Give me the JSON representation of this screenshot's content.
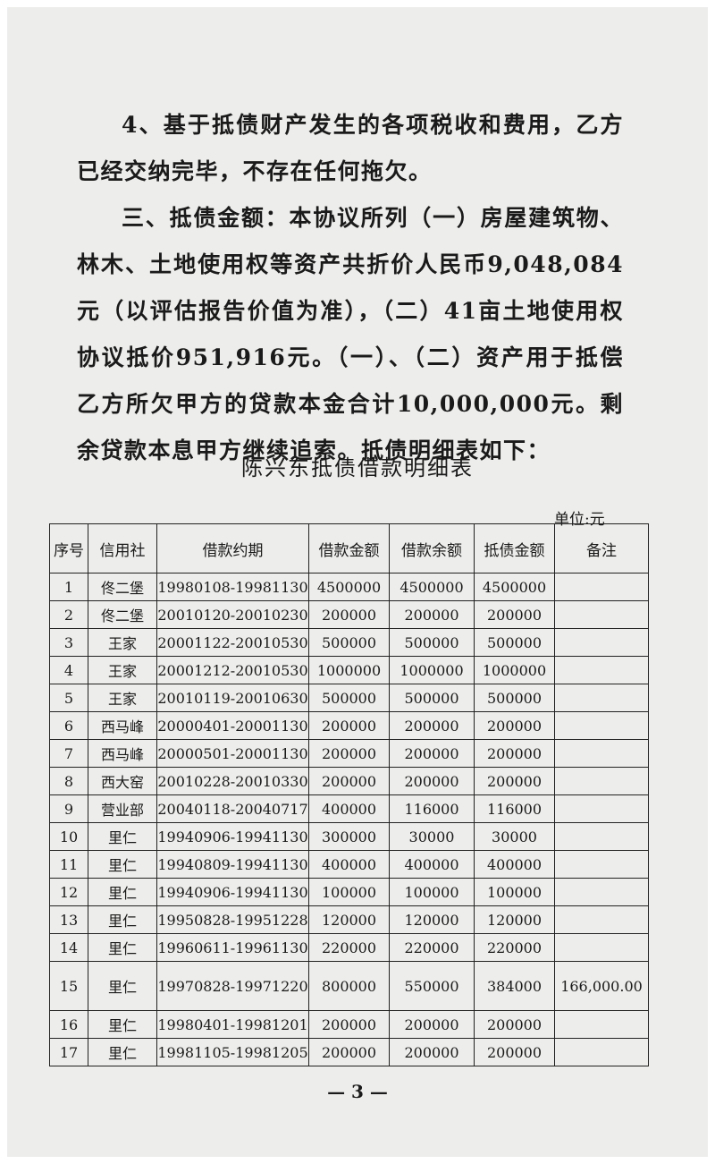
{
  "body": {
    "paragraphs": [
      "4、基于抵债财产发生的各项税收和费用，乙方已经交纳完毕，不存在任何拖欠。",
      "三、抵债金额：本协议所列（一）房屋建筑物、林木、土地使用权等资产共折价人民币9,048,084元（以评估报告价值为准），（二）41亩土地使用权协议抵价951,916元。（一）、（二）资产用于抵偿乙方所欠甲方的贷款本金合计10,000,000元。剩余贷款本息甲方继续追索。抵债明细表如下："
    ]
  },
  "table": {
    "title": "陈兴东抵债借款明细表",
    "unit": "单位:元",
    "header": [
      "序号",
      "信用社",
      "借款约期",
      "借款金额",
      "借款余额",
      "抵债金额",
      "备注"
    ],
    "rows": [
      [
        "1",
        "佟二堡",
        "19980108-19981130",
        "4500000",
        "4500000",
        "4500000",
        null
      ],
      [
        "2",
        "佟二堡",
        "20010120-20010230",
        "200000",
        "200000",
        "200000",
        null
      ],
      [
        "3",
        "王家",
        "20001122-20010530",
        "500000",
        "500000",
        "500000",
        null
      ],
      [
        "4",
        "王家",
        "20001212-20010530",
        "1000000",
        "1000000",
        "1000000",
        null
      ],
      [
        "5",
        "王家",
        "20010119-20010630",
        "500000",
        "500000",
        "500000",
        null
      ],
      [
        "6",
        "西马峰",
        "20000401-20001130",
        "200000",
        "200000",
        "200000",
        null
      ],
      [
        "7",
        "西马峰",
        "20000501-20001130",
        "200000",
        "200000",
        "200000",
        null
      ],
      [
        "8",
        "西大窑",
        "20010228-20010330",
        "200000",
        "200000",
        "200000",
        null
      ],
      [
        "9",
        "营业部",
        "20040118-20040717",
        "400000",
        "116000",
        "116000",
        null
      ],
      [
        "10",
        "里仁",
        "19940906-19941130",
        "300000",
        "30000",
        "30000",
        null
      ],
      [
        "11",
        "里仁",
        "19940809-19941130",
        "400000",
        "400000",
        "400000",
        null
      ],
      [
        "12",
        "里仁",
        "19940906-19941130",
        "100000",
        "100000",
        "100000",
        null
      ],
      [
        "13",
        "里仁",
        "19950828-19951228",
        "120000",
        "120000",
        "120000",
        null
      ],
      [
        "14",
        "里仁",
        "19960611-19961130",
        "220000",
        "220000",
        "220000",
        null
      ],
      [
        "15",
        "里仁",
        "19970828-19971220",
        "800000",
        "550000",
        "384000",
        "166,000.00"
      ],
      [
        "16",
        "里仁",
        "19980401-19981201",
        "200000",
        "200000",
        "200000",
        null
      ],
      [
        "17",
        "里仁",
        "19981105-19981205",
        "200000",
        "200000",
        "200000",
        null
      ]
    ]
  },
  "footer": {
    "page_number": "— 3 —"
  }
}
